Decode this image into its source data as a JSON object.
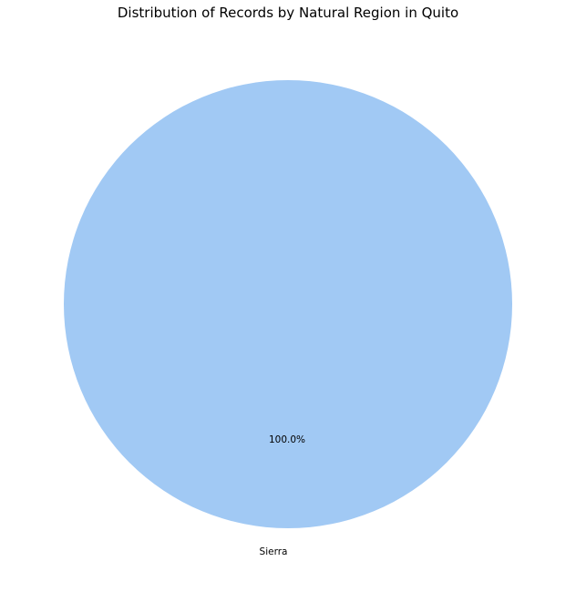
{
  "chart_data": {
    "type": "pie",
    "title": "Distribution of Records by Natural Region in Quito",
    "slices": [
      {
        "label": "Sierra",
        "value": 100.0,
        "percent_label": "100.0%",
        "color": "#a1c9f4"
      }
    ]
  }
}
